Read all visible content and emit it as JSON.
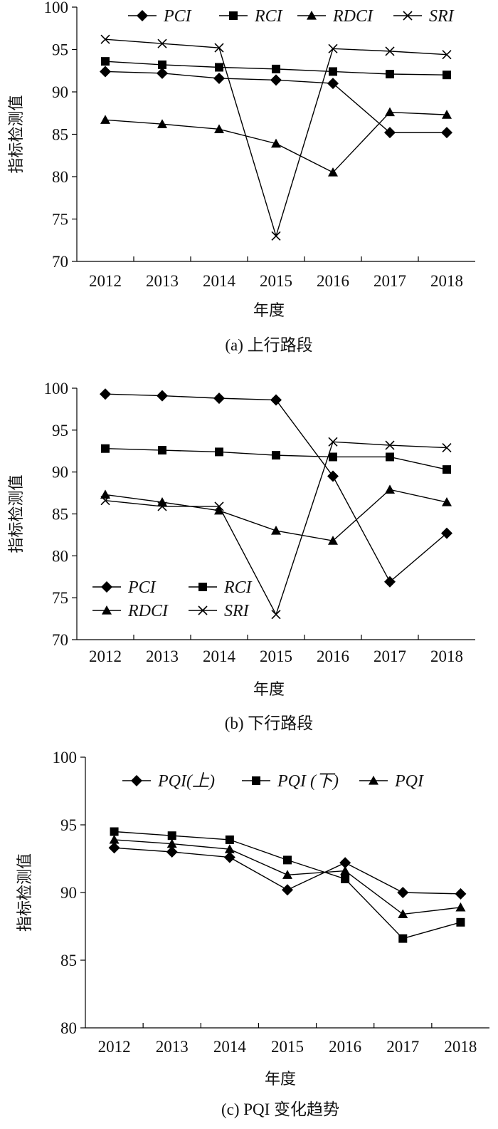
{
  "chart_data": [
    {
      "type": "line",
      "caption": "(a) 上行路段",
      "xlabel": "年度",
      "ylabel": "指标检测值",
      "ylim": [
        70,
        100
      ],
      "yticks": [
        70,
        75,
        80,
        85,
        90,
        95,
        100
      ],
      "categories": [
        "2012",
        "2013",
        "2014",
        "2015",
        "2016",
        "2017",
        "2018"
      ],
      "legend_position": "top",
      "series": [
        {
          "name": "PCI",
          "marker": "diamond",
          "values": [
            92.4,
            92.2,
            91.6,
            91.4,
            91.0,
            85.2,
            85.2
          ]
        },
        {
          "name": "RCI",
          "marker": "square",
          "values": [
            93.6,
            93.2,
            92.9,
            92.7,
            92.4,
            92.1,
            92.0
          ]
        },
        {
          "name": "RDCI",
          "marker": "triangle",
          "values": [
            86.7,
            86.2,
            85.6,
            83.9,
            80.5,
            87.6,
            87.3
          ]
        },
        {
          "name": "SRI",
          "marker": "cross",
          "values": [
            96.2,
            95.7,
            95.2,
            73.0,
            95.1,
            94.8,
            94.4
          ]
        }
      ]
    },
    {
      "type": "line",
      "caption": "(b) 下行路段",
      "xlabel": "年度",
      "ylabel": "指标检测值",
      "ylim": [
        70,
        100
      ],
      "yticks": [
        70,
        75,
        80,
        85,
        90,
        95,
        100
      ],
      "categories": [
        "2012",
        "2013",
        "2014",
        "2015",
        "2016",
        "2017",
        "2018"
      ],
      "legend_position": "bottom-left",
      "series": [
        {
          "name": "PCI",
          "marker": "diamond",
          "values": [
            99.3,
            99.1,
            98.8,
            98.6,
            89.5,
            76.9,
            82.7
          ]
        },
        {
          "name": "RCI",
          "marker": "square",
          "values": [
            92.8,
            92.6,
            92.4,
            92.0,
            91.8,
            91.8,
            90.3
          ]
        },
        {
          "name": "RDCI",
          "marker": "triangle",
          "values": [
            87.3,
            86.4,
            85.4,
            83.0,
            81.8,
            87.9,
            86.4
          ]
        },
        {
          "name": "SRI",
          "marker": "cross",
          "values": [
            86.6,
            85.9,
            85.9,
            73.0,
            93.6,
            93.2,
            92.9
          ]
        }
      ]
    },
    {
      "type": "line",
      "caption_italic": "PQI",
      "caption": "(c) PQI 变化趋势",
      "xlabel": "年度",
      "ylabel": "指标检测值",
      "ylim": [
        80,
        100
      ],
      "yticks": [
        80,
        85,
        90,
        95,
        100
      ],
      "categories": [
        "2012",
        "2013",
        "2014",
        "2015",
        "2016",
        "2017",
        "2018"
      ],
      "legend_position": "top",
      "series": [
        {
          "name": "PQI(上)",
          "marker": "diamond",
          "values": [
            93.3,
            93.0,
            92.6,
            90.2,
            92.2,
            90.0,
            89.9
          ]
        },
        {
          "name": "PQI (下)",
          "marker": "square",
          "values": [
            94.5,
            94.2,
            93.9,
            92.4,
            91.0,
            86.6,
            87.8
          ]
        },
        {
          "name": "PQI",
          "marker": "triangle",
          "values": [
            93.9,
            93.6,
            93.2,
            91.3,
            91.6,
            88.4,
            88.9
          ]
        }
      ]
    }
  ]
}
